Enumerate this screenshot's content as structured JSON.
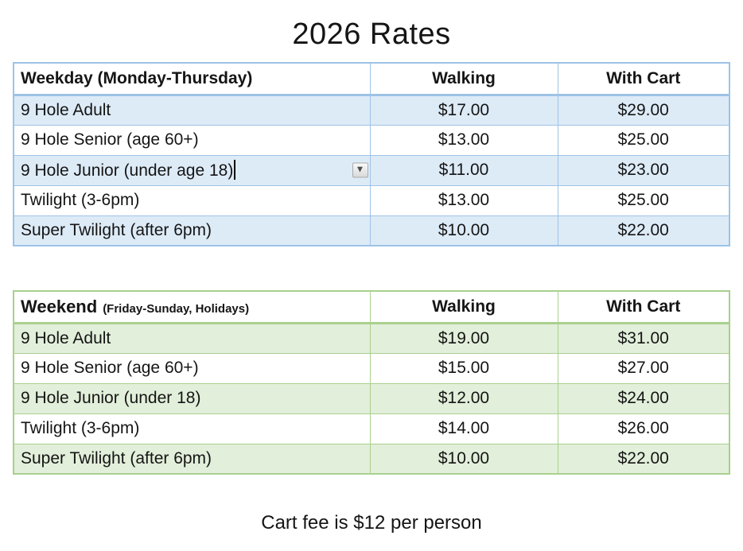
{
  "title": "2026 Rates",
  "footer": "Cart fee is $12 per person",
  "colors": {
    "weekday_row_fill": "#DDEBF7",
    "weekday_border": "#9DC3E6",
    "weekend_row_fill": "#E2EFDA",
    "weekend_border": "#A9D08E",
    "text": "#151515"
  },
  "icons": {
    "cell_dropdown": "▼"
  },
  "weekday_table": {
    "title": "Weekday (Monday-Thursday)",
    "col_walking": "Walking",
    "col_with_cart": "With Cart",
    "rows": [
      {
        "label": "9 Hole Adult",
        "walking": "$17.00",
        "with_cart": "$29.00"
      },
      {
        "label": "9 Hole Senior (age 60+)",
        "walking": "$13.00",
        "with_cart": "$25.00"
      },
      {
        "label": "9 Hole Junior (under age 18)",
        "walking": "$11.00",
        "with_cart": "$23.00"
      },
      {
        "label": "Twilight (3-6pm)",
        "walking": "$13.00",
        "with_cart": "$25.00"
      },
      {
        "label": "Super Twilight (after 6pm)",
        "walking": "$10.00",
        "with_cart": "$22.00"
      }
    ]
  },
  "weekend_table": {
    "title_main": "Weekend",
    "title_sub": "(Friday-Sunday, Holidays)",
    "col_walking": "Walking",
    "col_with_cart": "With Cart",
    "rows": [
      {
        "label": "9 Hole Adult",
        "walking": "$19.00",
        "with_cart": "$31.00"
      },
      {
        "label": "9 Hole Senior (age 60+)",
        "walking": "$15.00",
        "with_cart": "$27.00"
      },
      {
        "label": "9 Hole Junior (under 18)",
        "walking": "$12.00",
        "with_cart": "$24.00"
      },
      {
        "label": "Twilight (3-6pm)",
        "walking": "$14.00",
        "with_cart": "$26.00"
      },
      {
        "label": "Super Twilight (after 6pm)",
        "walking": "$10.00",
        "with_cart": "$22.00"
      }
    ]
  }
}
